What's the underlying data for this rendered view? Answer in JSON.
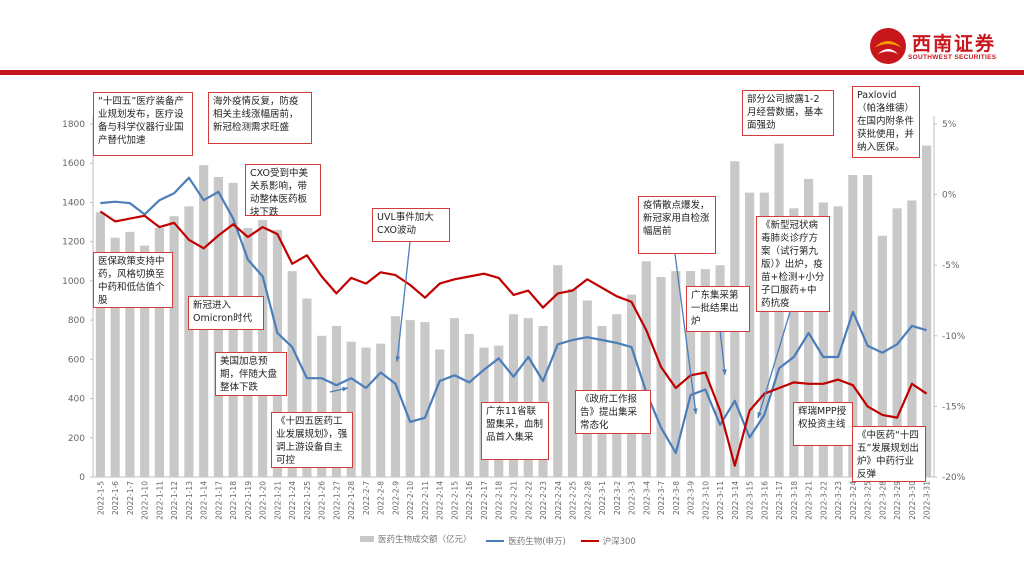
{
  "brand": {
    "name": "西南证券",
    "sub": "SOUTHWEST SECURITIES"
  },
  "colors": {
    "bar": "#c8c8c8",
    "line1": "#4a7ebb",
    "line2": "#c00000",
    "accent": "#c0171d",
    "note_border": "#d8393a"
  },
  "legend": {
    "bar": "医药生物成交额（亿元）",
    "line1": "医药生物(申万)",
    "line2": "沪深300"
  },
  "notes": [
    {
      "id": "n1",
      "text": "“十四五”医疗装备产业规划发布，医疗设备与科学仪器行业国产替代加速"
    },
    {
      "id": "n2",
      "text": "海外疫情反复，防疫相关主线涨幅居前，新冠检测需求旺盛"
    },
    {
      "id": "n3",
      "text": "CXO受到中美关系影响，带动整体医药板块下跌"
    },
    {
      "id": "n4",
      "text": "医保政策支持中药，风格切换至中药和低估值个股"
    },
    {
      "id": "n5",
      "text": "新冠进入Omicron时代"
    },
    {
      "id": "n6",
      "text": "美国加息预期，伴随大盘整体下跌"
    },
    {
      "id": "n7",
      "text": "《十四五医药工业发展规划》，强调上游设备自主可控"
    },
    {
      "id": "n8",
      "text": "UVL事件加大CXO波动"
    },
    {
      "id": "n9",
      "text": "广东11省联盟集采，血制品首入集采"
    },
    {
      "id": "n10",
      "text": "《政府工作报告》提出集采常态化"
    },
    {
      "id": "n11",
      "text": "疫情散点爆发，新冠家用自检涨幅居前"
    },
    {
      "id": "n12",
      "text": "广东集采第一批结果出炉"
    },
    {
      "id": "n13",
      "text": "部分公司披露1-2月经营数据，基本面强劲"
    },
    {
      "id": "n14",
      "text": "《新型冠状病毒肺炎诊疗方案（试行第九版）》出炉，疫苗+检测+小分子口服药+中药抗疫"
    },
    {
      "id": "n15",
      "text": "Paxlovid（帕洛维德）在国内附条件获批使用，并纳入医保。"
    },
    {
      "id": "n16",
      "text": "辉瑞MPP授权投资主线"
    },
    {
      "id": "n17",
      "text": "《中医药“十四五”发展规划出炉》中药行业反弹"
    }
  ],
  "chart_data": {
    "type": "bar",
    "categories": [
      "2022-1-5",
      "2022-1-6",
      "2022-1-7",
      "2022-1-10",
      "2022-1-11",
      "2022-1-12",
      "2022-1-13",
      "2022-1-14",
      "2022-1-17",
      "2022-1-18",
      "2022-1-19",
      "2022-1-20",
      "2022-1-21",
      "2022-1-24",
      "2022-1-25",
      "2022-1-26",
      "2022-1-27",
      "2022-1-28",
      "2022-2-7",
      "2022-2-8",
      "2022-2-9",
      "2022-2-10",
      "2022-2-11",
      "2022-2-14",
      "2022-2-15",
      "2022-2-16",
      "2022-2-17",
      "2022-2-18",
      "2022-2-21",
      "2022-2-22",
      "2022-2-23",
      "2022-2-24",
      "2022-2-25",
      "2022-2-28",
      "2022-3-1",
      "2022-3-2",
      "2022-3-3",
      "2022-3-4",
      "2022-3-7",
      "2022-3-8",
      "2022-3-9",
      "2022-3-10",
      "2022-3-11",
      "2022-3-14",
      "2022-3-15",
      "2022-3-16",
      "2022-3-17",
      "2022-3-18",
      "2022-3-21",
      "2022-3-22",
      "2022-3-23",
      "2022-3-24",
      "2022-3-25",
      "2022-3-28",
      "2022-3-29",
      "2022-3-30",
      "2022-3-31"
    ],
    "series": [
      {
        "name": "医药生物成交额（亿元）",
        "type": "bar",
        "axis": "left",
        "values": [
          1350,
          1220,
          1250,
          1180,
          1270,
          1330,
          1380,
          1590,
          1530,
          1500,
          1270,
          1310,
          1260,
          1050,
          910,
          720,
          770,
          690,
          660,
          680,
          820,
          800,
          790,
          650,
          810,
          730,
          660,
          670,
          830,
          810,
          770,
          1080,
          960,
          900,
          770,
          830,
          930,
          1100,
          1020,
          1050,
          1050,
          1060,
          1080,
          1610,
          1450,
          1450,
          1700,
          1370,
          1520,
          1400,
          1380,
          1540,
          1540,
          1230,
          1370,
          1410,
          1690
        ]
      },
      {
        "name": "医药生物(申万)",
        "type": "line",
        "axis": "right",
        "values": [
          -0.6,
          -0.5,
          -0.6,
          -1.4,
          -0.4,
          0.1,
          1.2,
          -0.4,
          0.2,
          -1.7,
          -4.6,
          -5.8,
          -9.8,
          -10.8,
          -13.0,
          -13.0,
          -13.5,
          -13.0,
          -13.7,
          -12.6,
          -13.4,
          -16.1,
          -15.8,
          -13.2,
          -12.8,
          -13.3,
          -12.4,
          -11.6,
          -12.9,
          -11.5,
          -13.2,
          -10.6,
          -10.3,
          -10.1,
          -10.3,
          -10.5,
          -10.8,
          -14.0,
          -16.5,
          -18.3,
          -14.2,
          -13.8,
          -16.3,
          -14.6,
          -17.2,
          -15.6,
          -12.3,
          -11.5,
          -9.8,
          -11.5,
          -11.5,
          -8.3,
          -10.7,
          -11.2,
          -10.6,
          -9.3,
          -9.6
        ]
      },
      {
        "name": "沪深300",
        "type": "line",
        "axis": "right",
        "values": [
          -1.2,
          -1.9,
          -1.7,
          -1.5,
          -2.3,
          -2.0,
          -3.2,
          -3.8,
          -2.9,
          -2.1,
          -3.0,
          -2.3,
          -2.8,
          -4.9,
          -4.3,
          -5.8,
          -7.0,
          -5.9,
          -6.3,
          -5.5,
          -5.7,
          -6.4,
          -7.3,
          -6.3,
          -6.0,
          -5.8,
          -5.6,
          -5.9,
          -7.1,
          -6.8,
          -8.0,
          -7.0,
          -6.8,
          -6.0,
          -6.6,
          -7.2,
          -7.6,
          -9.6,
          -12.2,
          -13.7,
          -12.8,
          -12.6,
          -15.3,
          -19.2,
          -15.3,
          -14.1,
          -13.7,
          -13.3,
          -13.4,
          -13.4,
          -13.1,
          -13.5,
          -15.0,
          -15.6,
          -15.8,
          -13.4,
          -14.1
        ]
      }
    ],
    "y_left": {
      "ticks": [
        0,
        200,
        400,
        600,
        800,
        1000,
        1200,
        1400,
        1600,
        1800
      ],
      "range": [
        0,
        1800
      ]
    },
    "y_right": {
      "ticks": [
        "5%",
        "0%",
        "-5%",
        "-10%",
        "-15%",
        "-20%"
      ],
      "range": [
        -20,
        5
      ]
    },
    "grid": false,
    "legend_position": "bottom"
  }
}
